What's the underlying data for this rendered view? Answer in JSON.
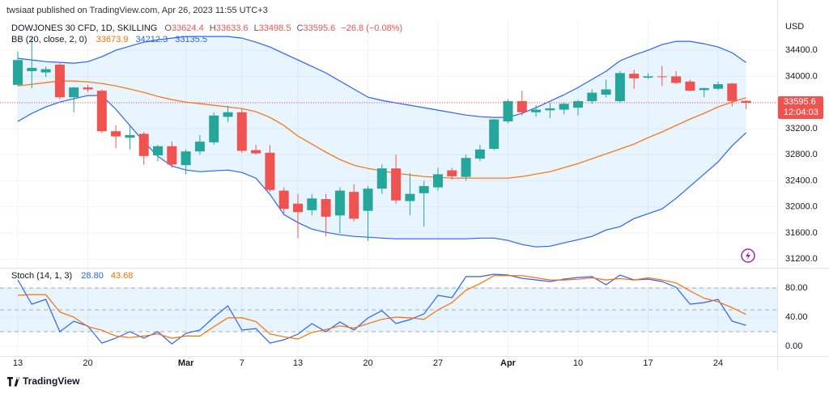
{
  "chart_data": {
    "type": "candlestick",
    "header": "twsiaat published on TradingView.com, Apr 26, 2023 11:55 UTC+3",
    "symbol": "DOWJONES 30 CFD, 1D, SKILLING",
    "ohlc_labels": [
      "O",
      "H",
      "L",
      "C"
    ],
    "change": "−26.8 (−0.08%)",
    "currency": "USD",
    "countdown": "12:04:03",
    "footer": "TradingView",
    "up_color": "#26a69a",
    "down_color": "#ef5350",
    "grid": true,
    "categories": [
      "13",
      null,
      null,
      null,
      null,
      "20",
      null,
      null,
      null,
      null,
      null,
      null,
      "Mar",
      null,
      null,
      null,
      "7",
      null,
      null,
      null,
      "13",
      null,
      null,
      null,
      null,
      "20",
      null,
      null,
      null,
      null,
      "27",
      null,
      null,
      null,
      null,
      "Apr",
      null,
      null,
      null,
      null,
      "10",
      null,
      null,
      null,
      null,
      "17",
      null,
      null,
      null,
      null,
      "24",
      null,
      null
    ],
    "open": [
      33870,
      34080,
      34060,
      34180,
      33680,
      33830,
      33780,
      33160,
      33060,
      33120,
      32790,
      32930,
      32640,
      32850,
      32990,
      33380,
      33450,
      32870,
      32830,
      32250,
      32050,
      31950,
      32120,
      31870,
      32230,
      31940,
      32280,
      32590,
      32090,
      32210,
      32300,
      32560,
      32460,
      32740,
      32890,
      33310,
      33620,
      33450,
      33480,
      33490,
      33520,
      33620,
      33720,
      33620,
      34040,
      33980,
      34000,
      34000,
      33920,
      33790,
      33810,
      33890,
      33624.4
    ],
    "high": [
      34380,
      34600,
      34150,
      34200,
      33840,
      33870,
      33800,
      33250,
      33250,
      33150,
      32950,
      33000,
      32880,
      33100,
      33450,
      33550,
      33500,
      32950,
      32950,
      32300,
      32200,
      32200,
      32200,
      32300,
      32350,
      32320,
      32650,
      32800,
      32520,
      32400,
      32600,
      32600,
      32800,
      32950,
      33350,
      33650,
      33780,
      33560,
      33590,
      33600,
      33640,
      33800,
      33950,
      34080,
      34100,
      34050,
      34160,
      34080,
      33950,
      33830,
      33920,
      33900,
      33633.6
    ],
    "low": [
      33850,
      33820,
      33990,
      33650,
      33450,
      33760,
      33130,
      32900,
      32880,
      32650,
      32700,
      32600,
      32500,
      32800,
      32950,
      33300,
      32830,
      32800,
      32230,
      31900,
      31520,
      31870,
      31550,
      31600,
      31780,
      31480,
      32200,
      32050,
      31870,
      31700,
      32250,
      32420,
      32400,
      32700,
      32870,
      33280,
      33400,
      33380,
      33360,
      33420,
      33400,
      33580,
      33680,
      33600,
      33810,
      33960,
      33850,
      33880,
      33770,
      33680,
      33790,
      33540,
      33498.5
    ],
    "close": [
      34250,
      34130,
      34110,
      33680,
      33830,
      33800,
      33160,
      33080,
      33100,
      32780,
      32930,
      32650,
      32850,
      33000,
      33400,
      33450,
      32860,
      32820,
      32260,
      31970,
      31920,
      32130,
      31850,
      32250,
      31820,
      32280,
      32590,
      32100,
      32200,
      32320,
      32500,
      32470,
      32750,
      32880,
      33340,
      33620,
      33450,
      33490,
      33510,
      33580,
      33620,
      33750,
      33800,
      34050,
      33970,
      34000,
      33990,
      33900,
      33780,
      33820,
      33880,
      33622.4,
      33595.6
    ],
    "overlay": {
      "name": "BB (20, close, 2, 0)",
      "fill_color": "rgba(33,150,243,0.10)",
      "series": [
        {
          "color": "#ff6d00",
          "values": [
            33854,
            33879,
            33904,
            33929,
            33929,
            33916,
            33891,
            33854,
            33805,
            33755,
            33693,
            33644,
            33606,
            33582,
            33557,
            33532,
            33507,
            33458,
            33371,
            33247,
            33086,
            32962,
            32838,
            32726,
            32639,
            32590,
            32552,
            32515,
            32490,
            32466,
            32453,
            32441,
            32441,
            32441,
            32441,
            32441,
            32466,
            32503,
            32540,
            32602,
            32664,
            32738,
            32813,
            32887,
            32962,
            33061,
            33148,
            33247,
            33346,
            33433,
            33532,
            33606,
            33673.9
          ]
        },
        {
          "color": "#2962ff",
          "values": [
            34276,
            34251,
            34226,
            34214,
            34202,
            34226,
            34301,
            34400,
            34462,
            34524,
            34561,
            34586,
            34611,
            34611,
            34611,
            34611,
            34586,
            34524,
            34450,
            34350,
            34251,
            34152,
            34053,
            33929,
            33805,
            33681,
            33632,
            33594,
            33557,
            33520,
            33483,
            33445,
            33408,
            33383,
            33371,
            33371,
            33433,
            33520,
            33619,
            33718,
            33830,
            33954,
            34078,
            34239,
            34326,
            34400,
            34487,
            34536,
            34536,
            34499,
            34450,
            34363,
            34212.3
          ]
        },
        {
          "color": "#2962ff",
          "values": [
            33309,
            33433,
            33532,
            33606,
            33656,
            33706,
            33706,
            33495,
            33247,
            32999,
            32776,
            32627,
            32565,
            32540,
            32552,
            32565,
            32528,
            32441,
            32193,
            31883,
            31759,
            31660,
            31610,
            31573,
            31548,
            31536,
            31523,
            31511,
            31511,
            31511,
            31511,
            31511,
            31511,
            31523,
            31523,
            31486,
            31424,
            31387,
            31399,
            31449,
            31498,
            31548,
            31647,
            31697,
            31821,
            31895,
            31970,
            32131,
            32317,
            32503,
            32689,
            32937,
            33135.5
          ]
        }
      ]
    },
    "ylim": [
      31080,
      34860
    ],
    "yticks": [
      {
        "value": 31200,
        "label": "31200.0"
      },
      {
        "value": 31600,
        "label": "31600.0"
      },
      {
        "value": 32000,
        "label": "32000.0"
      },
      {
        "value": 32400,
        "label": "32400.0"
      },
      {
        "value": 32800,
        "label": "32800.0"
      },
      {
        "value": 33200,
        "label": "33200.0"
      },
      {
        "value": 33600,
        "label": "33600.0"
      },
      {
        "value": 34000,
        "label": "34000.0"
      },
      {
        "value": 34400,
        "label": "34400.0"
      }
    ],
    "stoch": {
      "type": "line",
      "name": "Stoch (14, 1, 3)",
      "ylim": [
        -13.3,
        102.2
      ],
      "yticks": [
        {
          "value": 0,
          "label": "0.00"
        },
        {
          "value": 40,
          "label": "40.00"
        },
        {
          "value": 80,
          "label": "80.00"
        }
      ],
      "bands": {
        "upper": 80,
        "middle": 50,
        "lower": 20
      },
      "band_color": "rgba(33,150,243,0.10)",
      "series": [
        {
          "color": "#2962ff",
          "values": [
            91.1,
            57.8,
            64.4,
            20,
            34.4,
            27.8,
            4.4,
            11.1,
            20,
            11.1,
            20,
            3.3,
            17.8,
            22.2,
            40,
            55.6,
            22.2,
            24.4,
            4.4,
            8.9,
            16.7,
            31.1,
            20,
            33.3,
            22.2,
            38.9,
            48.9,
            31.1,
            36.7,
            44.4,
            70,
            66.7,
            95.6,
            95.6,
            98.9,
            97.8,
            93.3,
            91.1,
            88.9,
            92.2,
            94.4,
            95.6,
            84.4,
            97.8,
            91.1,
            92.2,
            88.9,
            81.1,
            57.8,
            60,
            64.4,
            34.4,
            28.8
          ],
          "value_labels": [
            null,
            null,
            null,
            null,
            null,
            null,
            null,
            null,
            null,
            null,
            null,
            null,
            null,
            null,
            null,
            null,
            null,
            null,
            null,
            null,
            null,
            null,
            null,
            null,
            null,
            null,
            null,
            null,
            null,
            null,
            null,
            null,
            null,
            null,
            null,
            null,
            null,
            null,
            null,
            null,
            null,
            null,
            null,
            null,
            null,
            null,
            null,
            null,
            null,
            null,
            null,
            null,
            "28.80"
          ]
        },
        {
          "color": "#ff6d00",
          "values": [
            70,
            71,
            71,
            47,
            40,
            27,
            22,
            14,
            12,
            14,
            17,
            11,
            14,
            14,
            27,
            39,
            39,
            34,
            17,
            13,
            10,
            19,
            23,
            28,
            25,
            31,
            37,
            40,
            39,
            37,
            50,
            60,
            77,
            86,
            97,
            97,
            97,
            94,
            91,
            91,
            92,
            94,
            91,
            93,
            91,
            94,
            91,
            87,
            76,
            66,
            61,
            53,
            43.68
          ]
        }
      ]
    }
  }
}
